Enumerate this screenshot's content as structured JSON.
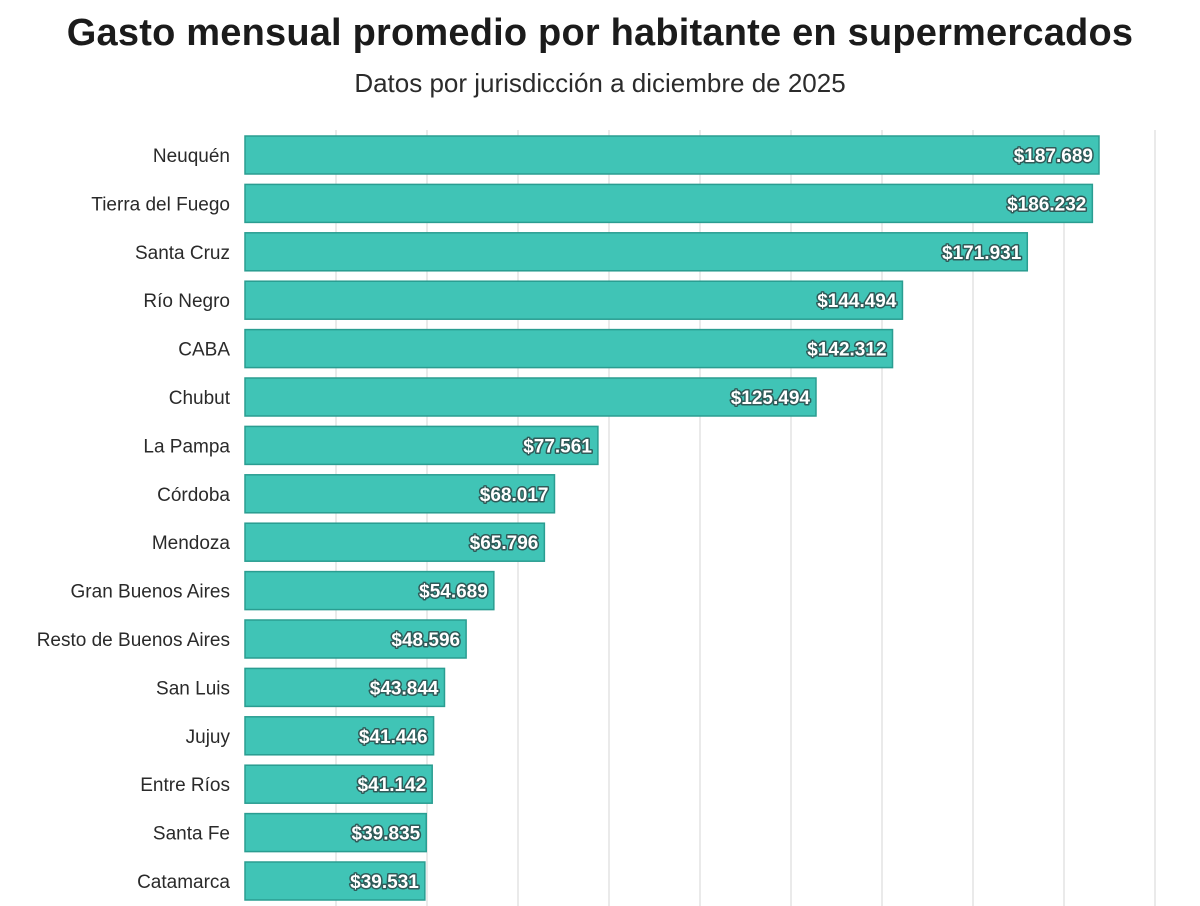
{
  "colors": {
    "bar": "#40c4b6",
    "bar_edge": "#2a9d91",
    "grid": "#e4e4e4",
    "text": "#2a2a2a"
  },
  "chart_data": {
    "type": "bar",
    "orientation": "horizontal",
    "title": "Gasto mensual promedio por habitante en supermercados",
    "subtitle": "Datos por jurisdicción a diciembre de 2025",
    "xlabel": "",
    "ylabel": "",
    "xlim": [
      0,
      200000
    ],
    "grid": true,
    "categories": [
      "Neuquén",
      "Tierra del Fuego",
      "Santa Cruz",
      "Río Negro",
      "CABA",
      "Chubut",
      "La Pampa",
      "Córdoba",
      "Mendoza",
      "Gran Buenos Aires",
      "Resto de Buenos Aires",
      "San Luis",
      "Jujuy",
      "Entre Ríos",
      "Santa Fe",
      "Catamarca"
    ],
    "values": [
      187689,
      186232,
      171931,
      144494,
      142312,
      125494,
      77561,
      68017,
      65796,
      54689,
      48596,
      43844,
      41446,
      41142,
      39835,
      39531
    ],
    "value_labels": [
      "$187.689",
      "$186.232",
      "$171.931",
      "$144.494",
      "$142.312",
      "$125.494",
      "$77.561",
      "$68.017",
      "$65.796",
      "$54.689",
      "$48.596",
      "$43.844",
      "$41.446",
      "$41.142",
      "$39.835",
      "$39.531"
    ]
  }
}
